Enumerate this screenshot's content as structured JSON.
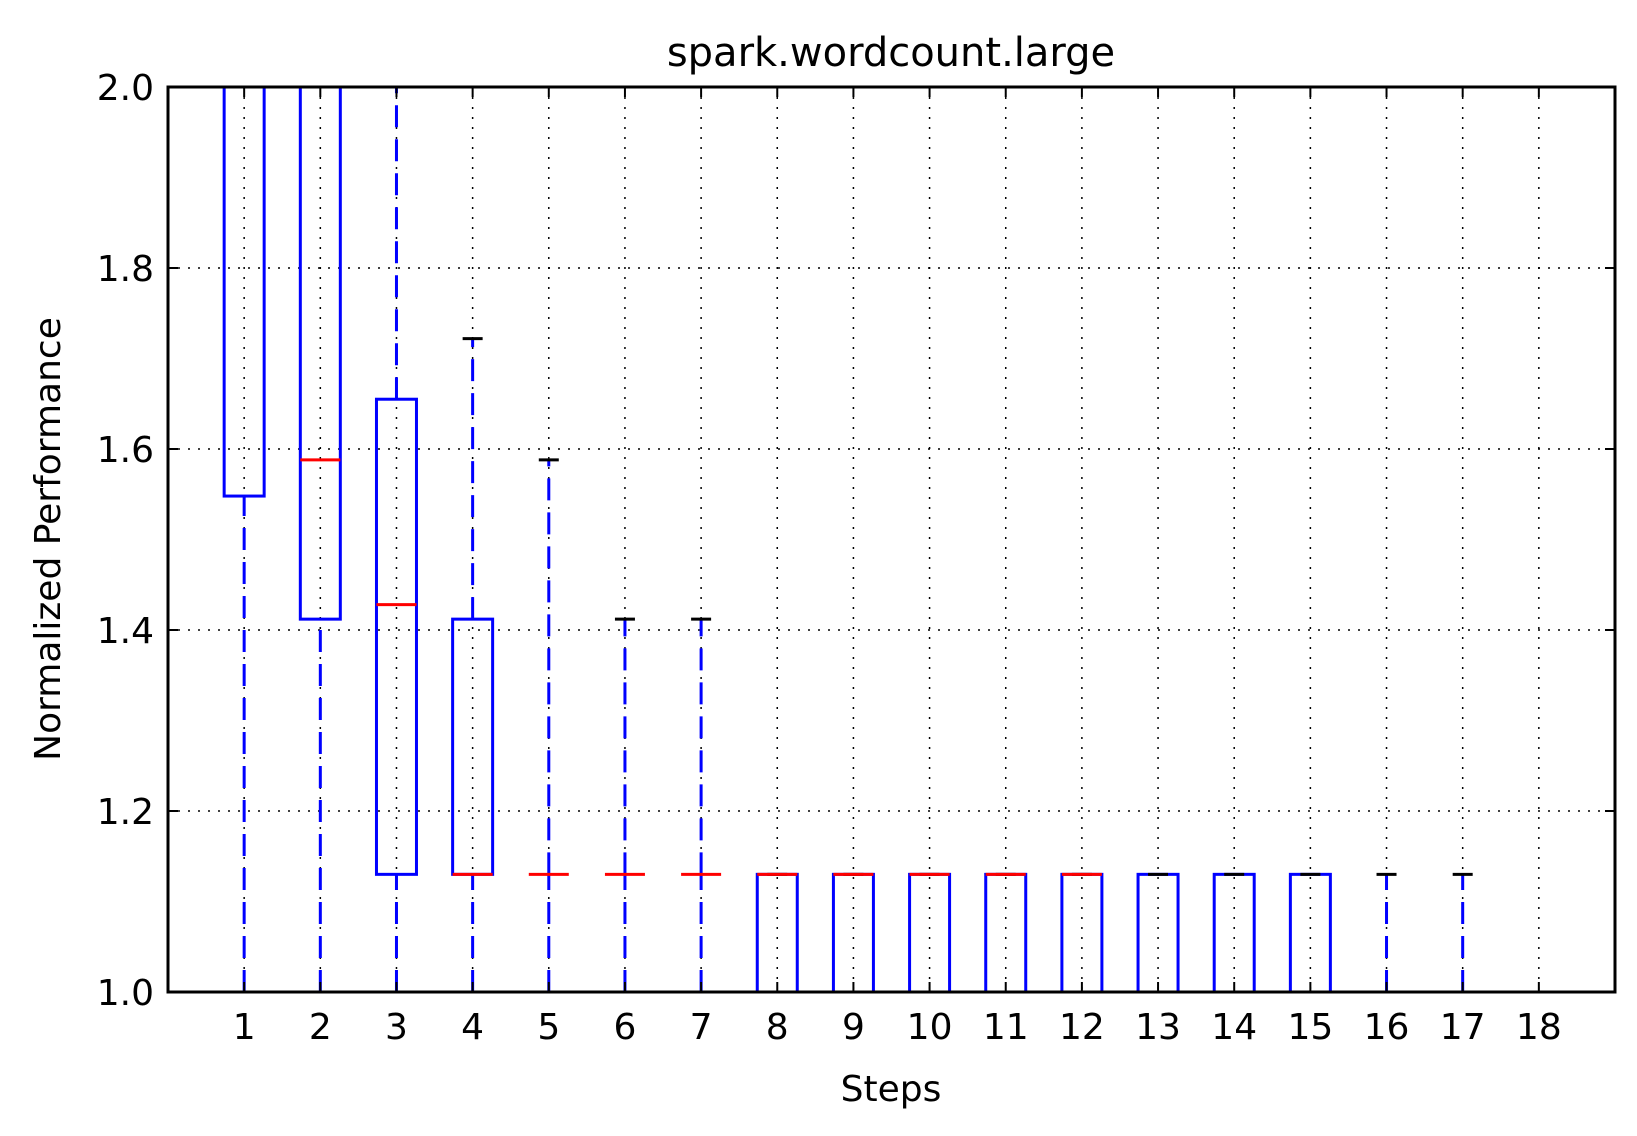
{
  "chart_data": {
    "type": "box",
    "title": "spark.wordcount.large",
    "xlabel": "Steps",
    "ylabel": "Normalized Performance",
    "ylim": [
      1.0,
      2.0
    ],
    "yticks": [
      "1.0",
      "1.2",
      "1.4",
      "1.6",
      "1.8",
      "2.0"
    ],
    "categories": [
      "1",
      "2",
      "3",
      "4",
      "5",
      "6",
      "7",
      "8",
      "9",
      "10",
      "11",
      "12",
      "13",
      "14",
      "15",
      "16",
      "17",
      "18"
    ],
    "grid": true,
    "boxes": [
      {
        "step": "1",
        "whisker_low": 1.0,
        "q1": 1.548,
        "median": 2.0,
        "q3": 2.0,
        "whisker_high": 2.0
      },
      {
        "step": "2",
        "whisker_low": 1.0,
        "q1": 1.412,
        "median": 1.588,
        "q3": 2.0,
        "whisker_high": 2.0
      },
      {
        "step": "3",
        "whisker_low": 1.0,
        "q1": 1.13,
        "median": 1.428,
        "q3": 1.655,
        "whisker_high": 2.0
      },
      {
        "step": "4",
        "whisker_low": 1.0,
        "q1": 1.13,
        "median": 1.13,
        "q3": 1.412,
        "whisker_high": 1.722
      },
      {
        "step": "5",
        "whisker_low": 1.0,
        "q1": 1.13,
        "median": 1.13,
        "q3": 1.13,
        "whisker_high": 1.588
      },
      {
        "step": "6",
        "whisker_low": 1.0,
        "q1": 1.13,
        "median": 1.13,
        "q3": 1.13,
        "whisker_high": 1.412
      },
      {
        "step": "7",
        "whisker_low": 1.0,
        "q1": 1.13,
        "median": 1.13,
        "q3": 1.13,
        "whisker_high": 1.412
      },
      {
        "step": "8",
        "whisker_low": 1.0,
        "q1": 1.0,
        "median": 1.13,
        "q3": 1.13,
        "whisker_high": 1.13
      },
      {
        "step": "9",
        "whisker_low": 1.0,
        "q1": 1.0,
        "median": 1.13,
        "q3": 1.13,
        "whisker_high": 1.13
      },
      {
        "step": "10",
        "whisker_low": 1.0,
        "q1": 1.0,
        "median": 1.13,
        "q3": 1.13,
        "whisker_high": 1.13
      },
      {
        "step": "11",
        "whisker_low": 1.0,
        "q1": 1.0,
        "median": 1.13,
        "q3": 1.13,
        "whisker_high": 1.13
      },
      {
        "step": "12",
        "whisker_low": 1.0,
        "q1": 1.0,
        "median": 1.13,
        "q3": 1.13,
        "whisker_high": 1.13
      },
      {
        "step": "13",
        "whisker_low": 1.0,
        "q1": 1.0,
        "median": 1.0,
        "q3": 1.13,
        "whisker_high": 1.13
      },
      {
        "step": "14",
        "whisker_low": 1.0,
        "q1": 1.0,
        "median": 1.0,
        "q3": 1.13,
        "whisker_high": 1.13
      },
      {
        "step": "15",
        "whisker_low": 1.0,
        "q1": 1.0,
        "median": 1.0,
        "q3": 1.13,
        "whisker_high": 1.13
      },
      {
        "step": "16",
        "whisker_low": 1.0,
        "q1": 1.0,
        "median": 1.0,
        "q3": 1.0,
        "whisker_high": 1.13
      },
      {
        "step": "17",
        "whisker_low": 1.0,
        "q1": 1.0,
        "median": 1.0,
        "q3": 1.0,
        "whisker_high": 1.13
      },
      {
        "step": "18",
        "whisker_low": 1.0,
        "q1": 1.0,
        "median": 1.0,
        "q3": 1.0,
        "whisker_high": 1.0
      }
    ],
    "colors": {
      "box": "#0000ff",
      "whisker": "#0000ff",
      "median": "#ff0000",
      "cap": "#000000",
      "grid": "#000000",
      "axes": "#000000"
    }
  }
}
